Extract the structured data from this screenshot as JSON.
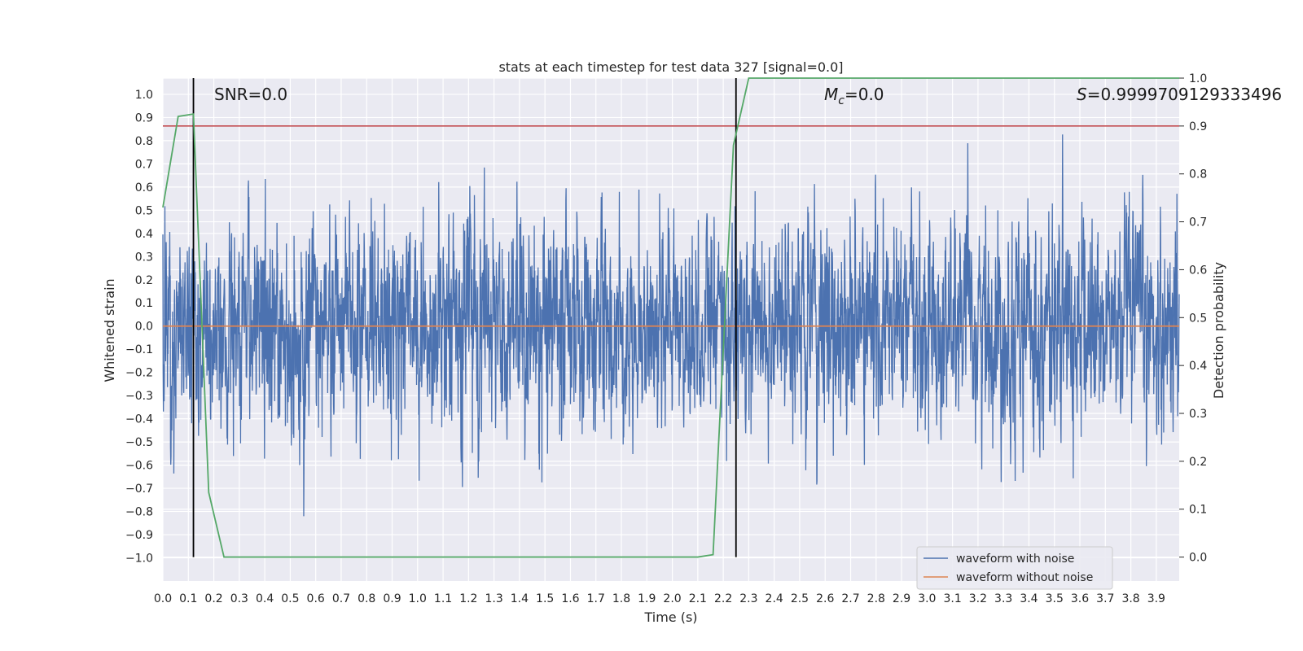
{
  "chart_data": {
    "type": "line",
    "title": "stats at each timestep for test data 327 [signal=0.0]",
    "xlabel": "Time (s)",
    "ylabel": "Whitened strain",
    "y2label": "Detection probability",
    "xlim": [
      0.0,
      3.99
    ],
    "ylim": [
      -1.1,
      1.07
    ],
    "y2lim": [
      -0.05,
      1.0
    ],
    "x_ticks": [
      "0.0",
      "0.1",
      "0.2",
      "0.3",
      "0.4",
      "0.5",
      "0.6",
      "0.7",
      "0.8",
      "0.9",
      "1.0",
      "1.1",
      "1.2",
      "1.3",
      "1.4",
      "1.5",
      "1.6",
      "1.7",
      "1.8",
      "1.9",
      "2.0",
      "2.1",
      "2.2",
      "2.3",
      "2.4",
      "2.5",
      "2.6",
      "2.7",
      "2.8",
      "2.9",
      "3.0",
      "3.1",
      "3.2",
      "3.3",
      "3.4",
      "3.5",
      "3.6",
      "3.7",
      "3.8",
      "3.9"
    ],
    "y_ticks": [
      "1.0",
      "0.9",
      "0.8",
      "0.7",
      "0.6",
      "0.5",
      "0.4",
      "0.3",
      "0.2",
      "0.1",
      "0.0",
      "-0.1",
      "-0.2",
      "-0.3",
      "-0.4",
      "-0.5",
      "-0.6",
      "-0.7",
      "-0.8",
      "-0.9",
      "-1.0"
    ],
    "y2_ticks": [
      "1.0",
      "0.9",
      "0.8",
      "0.7",
      "0.6",
      "0.5",
      "0.4",
      "0.3",
      "0.2",
      "0.1",
      "0.0"
    ],
    "grid": true,
    "legend_position": "bottom-right",
    "series": [
      {
        "name": "waveform with noise",
        "color": "#4c72b0",
        "axis": "left",
        "noise_amplitude": 0.85,
        "sample_rate": 1000
      },
      {
        "name": "waveform without noise",
        "color": "#dd8452",
        "axis": "left",
        "x": [
          0.0,
          3.99
        ],
        "y": [
          0.0,
          0.0
        ]
      },
      {
        "color": "#55a868",
        "axis": "right",
        "x": [
          0.0,
          0.06,
          0.12,
          0.18,
          0.24,
          2.1,
          2.16,
          2.24,
          2.3,
          3.99
        ],
        "y": [
          0.73,
          0.92,
          0.925,
          0.135,
          0.0,
          0.0,
          0.005,
          0.86,
          1.0,
          1.0
        ]
      }
    ],
    "threshold": {
      "axis": "right",
      "value": 0.9,
      "color": "#c44e52"
    },
    "vertical_lines": [
      {
        "x": 0.12,
        "color": "#000000"
      },
      {
        "x": 2.25,
        "color": "#000000"
      }
    ],
    "annotations": {
      "snr": "SNR=0.0",
      "mc_symbol": "M",
      "mc_sub": "c",
      "mc_value": "=0.0",
      "s_symbol": "S",
      "s_value": "=0.9999709129333496"
    }
  }
}
